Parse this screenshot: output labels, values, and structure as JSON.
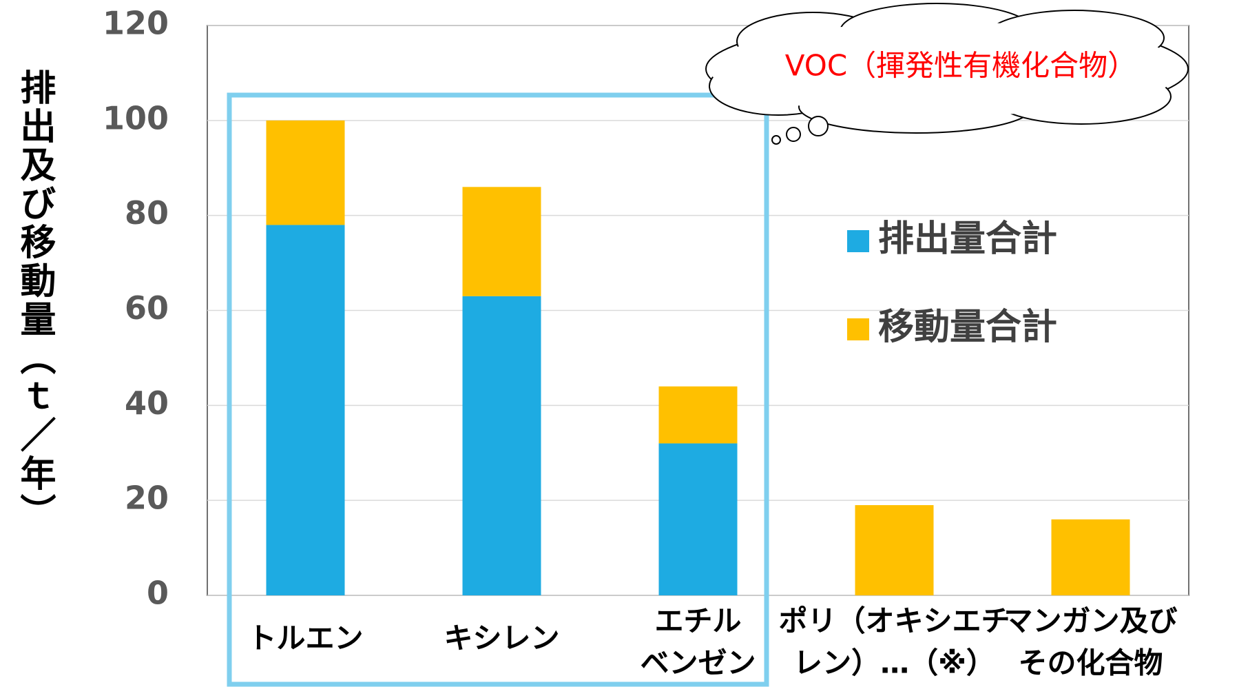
{
  "chart_data": {
    "type": "stacked_bar",
    "y_label": "排出及び移動量（ｔ／年）",
    "annotation": "VOC（揮発性有機化合物）",
    "categories": [
      [
        "トルエン"
      ],
      [
        "キシレン"
      ],
      [
        "エチル",
        "ベンゼン"
      ],
      [
        "ポリ（オキシエチ",
        "レン）…（※）"
      ],
      [
        "マンガン及び",
        "その化合物"
      ]
    ],
    "series": [
      {
        "name": "排出量合計",
        "color": "#1eabe2",
        "values": [
          78,
          63,
          32,
          0,
          0
        ]
      },
      {
        "name": "移動量合計",
        "color": "#ffc000",
        "values": [
          22,
          23,
          12,
          19,
          16
        ]
      }
    ],
    "ylim": [
      0,
      120
    ],
    "yticks": [
      0,
      20,
      40,
      60,
      80,
      100,
      120
    ],
    "grid": true
  }
}
